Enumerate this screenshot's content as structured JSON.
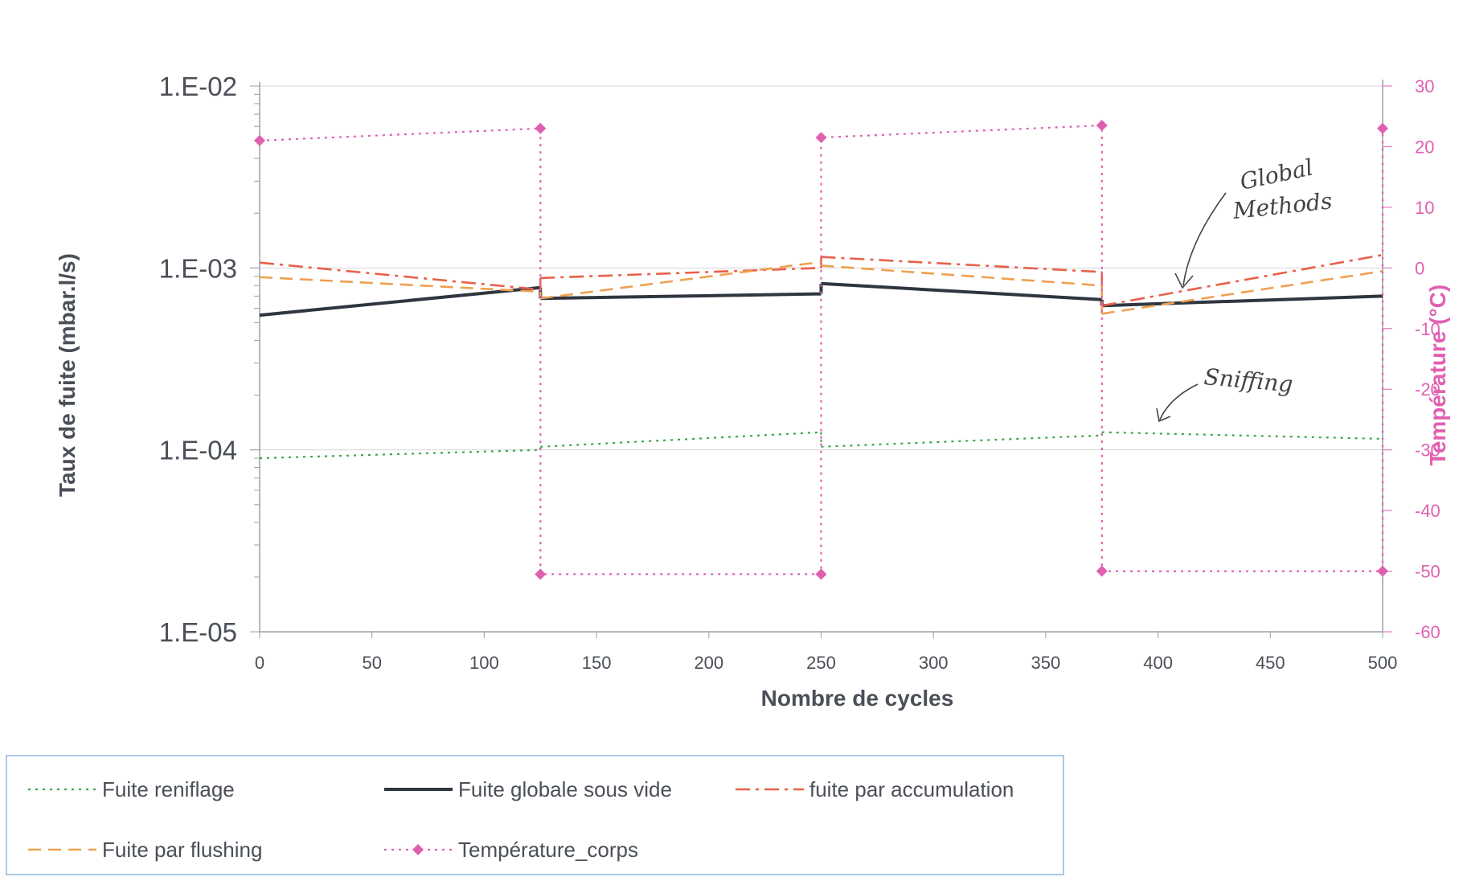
{
  "chart_data": {
    "type": "line",
    "title": "",
    "xlabel": "Nombre de cycles",
    "ylabel": "Taux de fuite (mbar.l/s)",
    "y2label": "Température (°C)",
    "xlim": [
      0,
      500
    ],
    "ylim": [
      1e-05,
      0.01
    ],
    "y_scale": "log",
    "y2lim": [
      -60,
      30
    ],
    "x_ticks": [
      "0",
      "50",
      "100",
      "150",
      "200",
      "250",
      "300",
      "350",
      "400",
      "450",
      "500"
    ],
    "y_ticks": [
      "1.E-02",
      "1.E-03",
      "1.E-04",
      "1.E-05"
    ],
    "y2_ticks": [
      "30",
      "20",
      "10",
      "0",
      "-10",
      "-20",
      "-30",
      "-40",
      "-50",
      "-60"
    ],
    "grid": true,
    "legend_position": "bottom",
    "series": [
      {
        "name": "Fuite reniflage",
        "axis": "left",
        "color": "#3aa64a",
        "style": "dotted",
        "segments": [
          [
            [
              0,
              9e-05
            ],
            [
              125,
              0.0001
            ]
          ],
          [
            [
              125,
              0.000104
            ],
            [
              250,
              0.000125
            ]
          ],
          [
            [
              250,
              0.000104
            ],
            [
              375,
              0.00012
            ]
          ],
          [
            [
              375,
              0.000125
            ],
            [
              500,
              0.000115
            ]
          ]
        ]
      },
      {
        "name": "Fuite globale sous vide",
        "axis": "left",
        "color": "#2f3640",
        "style": "solid",
        "segments": [
          [
            [
              0,
              0.00055
            ],
            [
              125,
              0.00078
            ]
          ],
          [
            [
              125,
              0.00068
            ],
            [
              250,
              0.00072
            ]
          ],
          [
            [
              250,
              0.00082
            ],
            [
              375,
              0.00067
            ]
          ],
          [
            [
              375,
              0.00062
            ],
            [
              500,
              0.0007
            ]
          ]
        ]
      },
      {
        "name": "fuite par accumulation",
        "axis": "left",
        "color": "#e8604a",
        "style": "dashdot",
        "segments": [
          [
            [
              0,
              0.00107
            ],
            [
              125,
              0.00076
            ]
          ],
          [
            [
              125,
              0.00088
            ],
            [
              250,
              0.001
            ]
          ],
          [
            [
              250,
              0.00115
            ],
            [
              375,
              0.00095
            ]
          ],
          [
            [
              375,
              0.00062
            ],
            [
              500,
              0.00118
            ]
          ]
        ]
      },
      {
        "name": "Fuite par flushing",
        "axis": "left",
        "color": "#f0a050",
        "style": "dashed",
        "segments": [
          [
            [
              0,
              0.00089
            ],
            [
              125,
              0.00074
            ]
          ],
          [
            [
              125,
              0.00068
            ],
            [
              250,
              0.00108
            ]
          ],
          [
            [
              250,
              0.00103
            ],
            [
              375,
              0.0008
            ]
          ],
          [
            [
              375,
              0.00056
            ],
            [
              500,
              0.00096
            ]
          ]
        ]
      },
      {
        "name": "Température_corps",
        "axis": "right",
        "color": "#e060b0",
        "style": "dotted-markers",
        "points": [
          [
            0,
            21
          ],
          [
            125,
            23
          ],
          [
            125,
            -50.5
          ],
          [
            250,
            -50.5
          ],
          [
            250,
            21.5
          ],
          [
            375,
            23.5
          ],
          [
            375,
            -50
          ],
          [
            500,
            -50
          ],
          [
            500,
            23
          ]
        ]
      }
    ],
    "annotations": [
      {
        "text_lines": [
          "Global",
          "Methods"
        ]
      },
      {
        "text_lines": [
          "Sniffing"
        ]
      }
    ]
  }
}
